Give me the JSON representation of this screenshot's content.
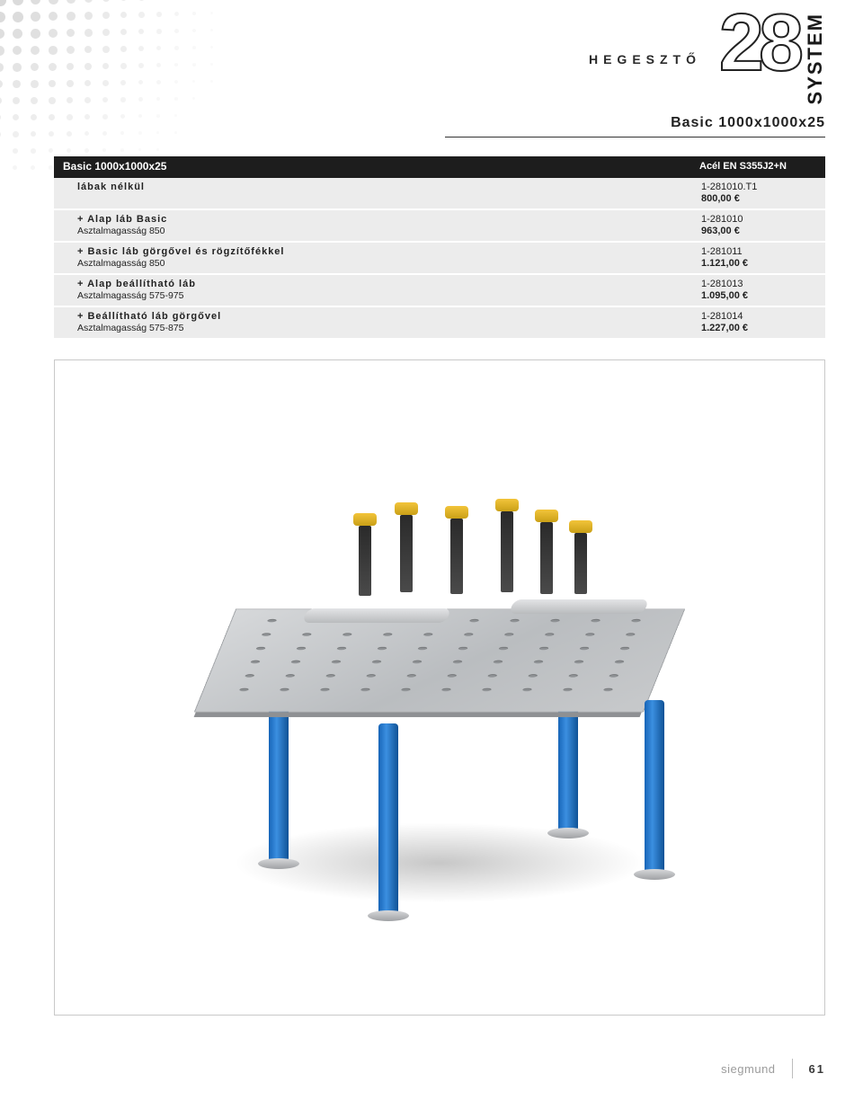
{
  "header": {
    "heading": "HEGESZTŐ",
    "big_number": "28",
    "system": "SYSTEM"
  },
  "title": "Basic 1000x1000x25",
  "table": {
    "header_left": "Basic 1000x1000x25",
    "header_right": "Acél EN S355J2+N",
    "rows": [
      {
        "main": "lábak nélkül",
        "sub": "",
        "code": "1-281010.T1",
        "price": "800,00 €"
      },
      {
        "main": "+ Alap láb Basic",
        "sub": "Asztalmagasság 850",
        "code": "1-281010",
        "price": "963,00 €"
      },
      {
        "main": "+ Basic láb görgővel és rögzítőfékkel",
        "sub": "Asztalmagasság 850",
        "code": "1-281011",
        "price": "1.121,00 €"
      },
      {
        "main": "+ Alap beállítható láb",
        "sub": "Asztalmagasság 575-975",
        "code": "1-281013",
        "price": "1.095,00 €"
      },
      {
        "main": "+ Beállítható láb görgővel",
        "sub": "Asztalmagasság 575-875",
        "code": "1-281014",
        "price": "1.227,00 €"
      }
    ]
  },
  "footer": {
    "brand": "siegmund",
    "page": "61"
  },
  "colors": {
    "header_bg": "#1d1d1d",
    "row_bg": "#ececec",
    "leg_blue": "#1765b8",
    "clamp_yellow": "#f2c43a"
  }
}
